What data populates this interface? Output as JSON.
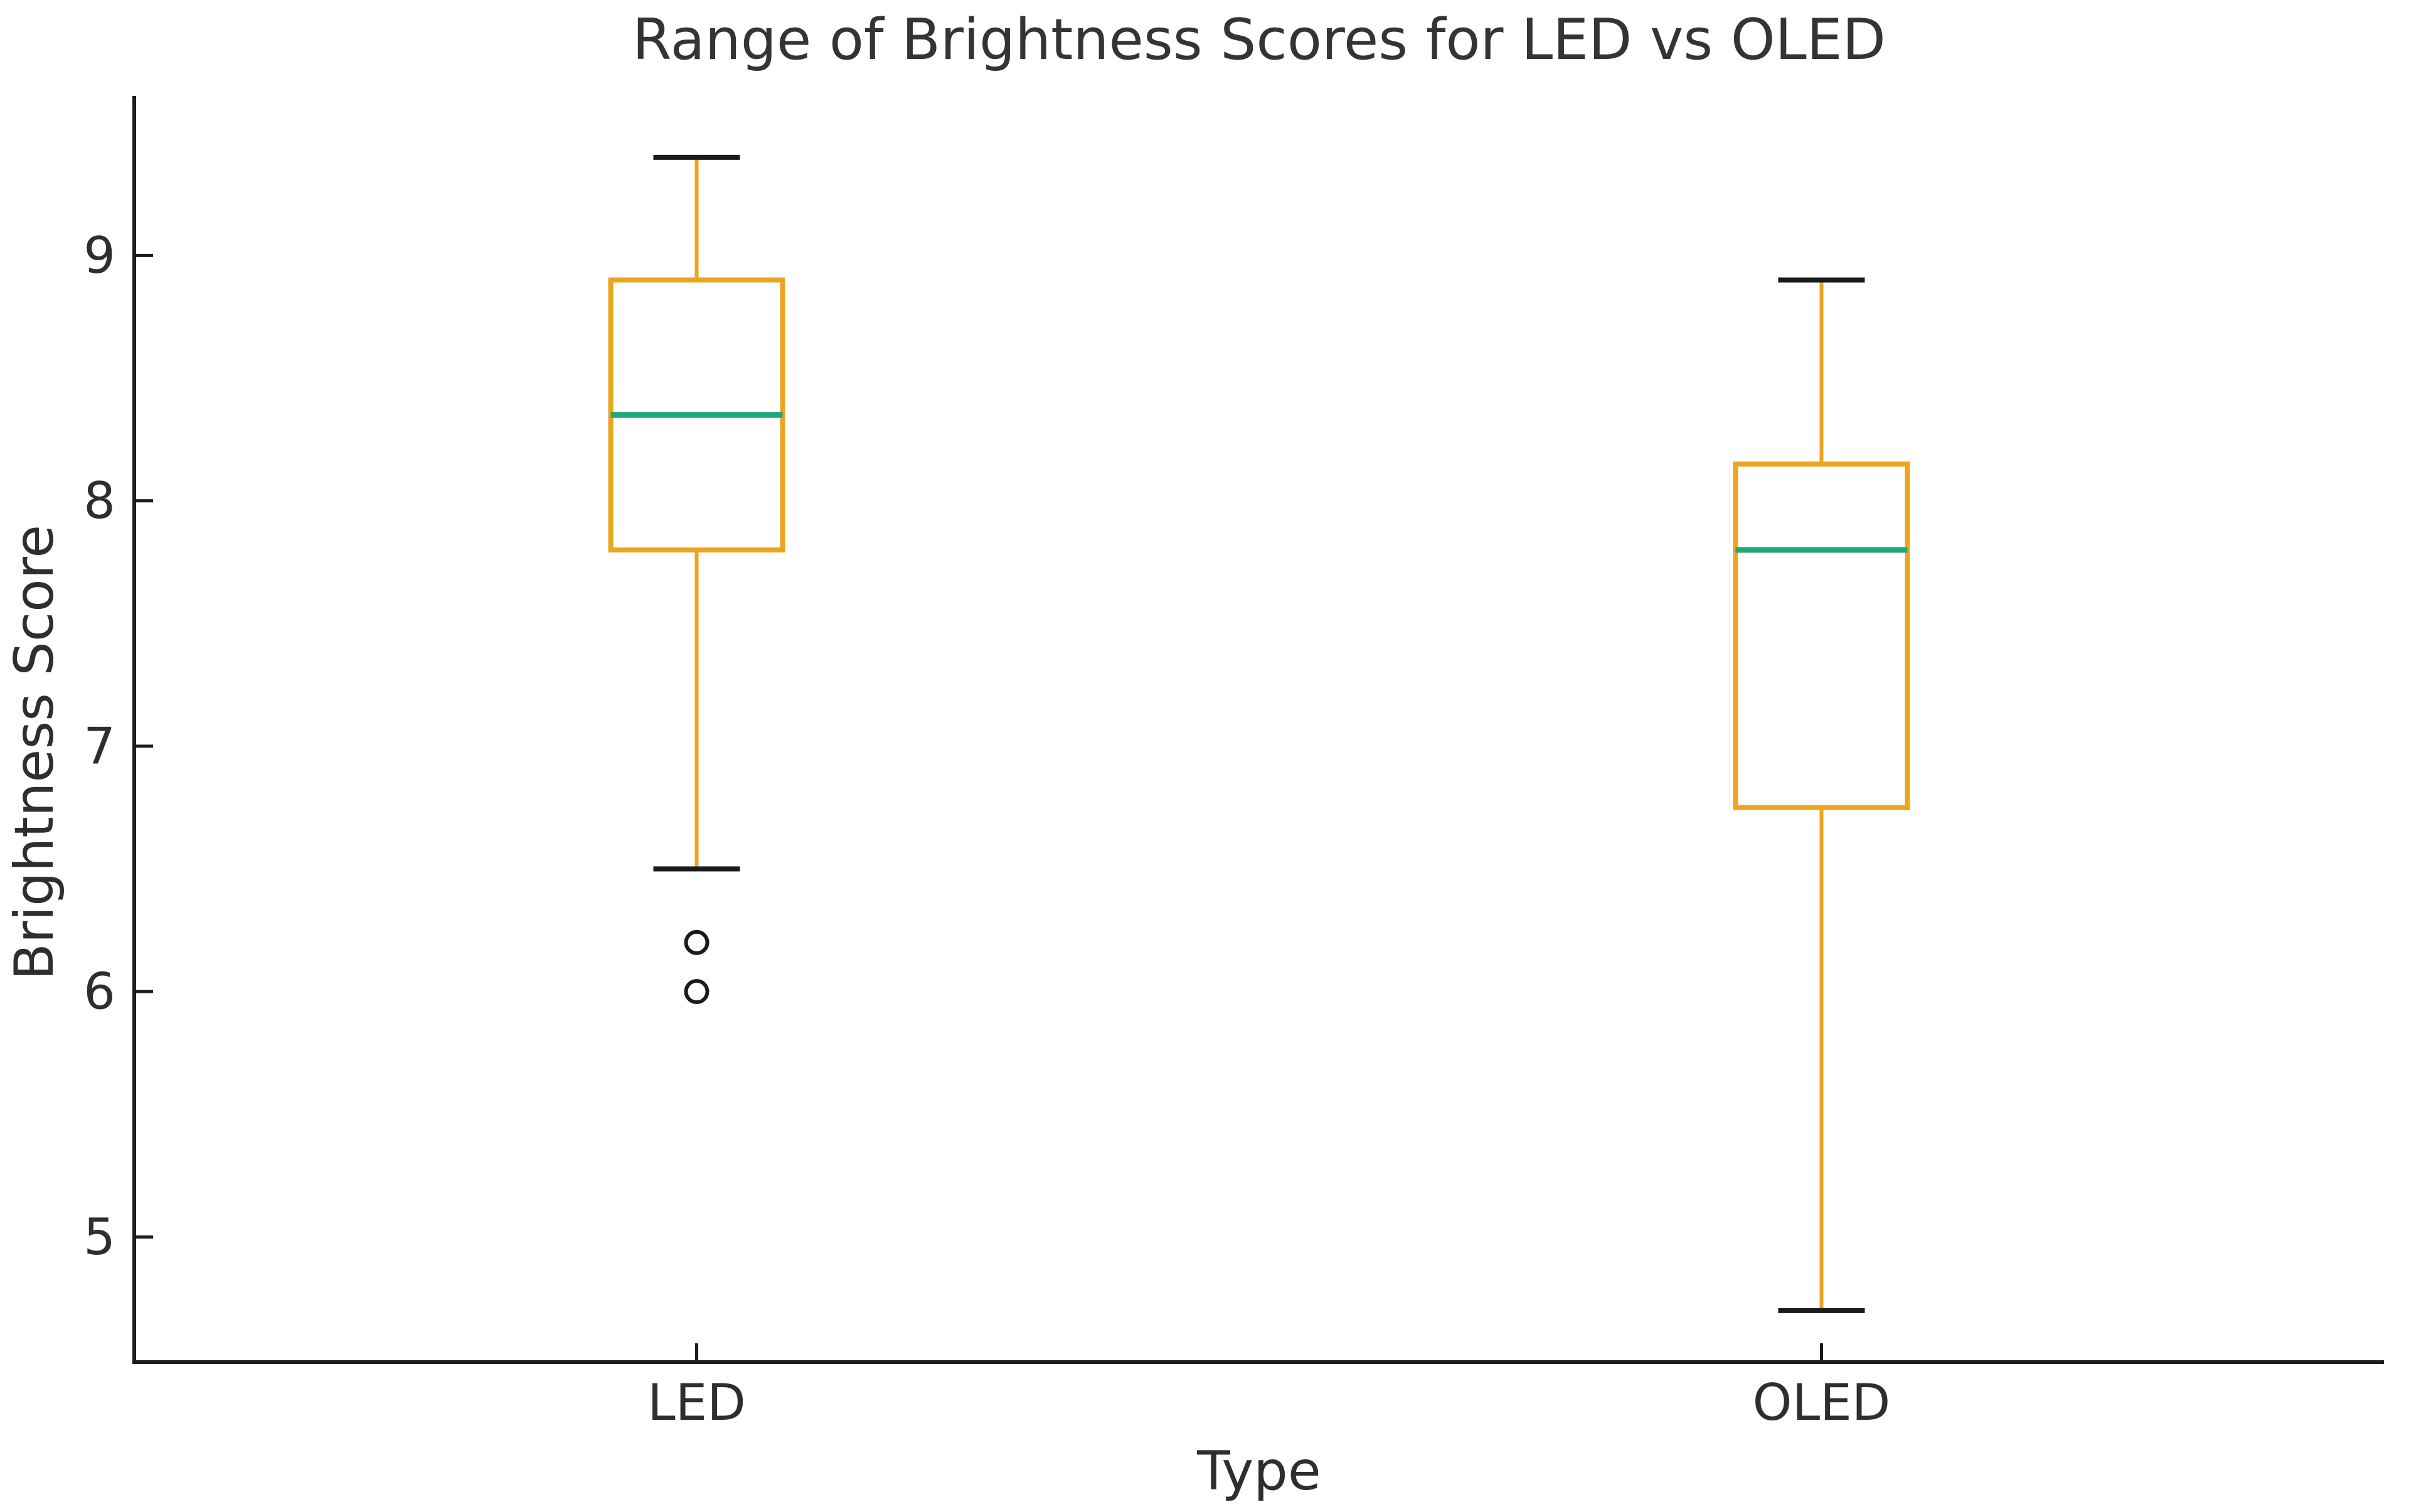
{
  "figure": {
    "title": "Range of Brightness Scores for LED vs OLED",
    "xlabel": "Type",
    "ylabel": "Brightness Score"
  },
  "chart_data": {
    "type": "boxplot",
    "title": "Range of Brightness Scores for LED vs OLED",
    "xlabel": "Type",
    "ylabel": "Brightness Score",
    "categories": [
      "LED",
      "OLED"
    ],
    "yticks": [
      5,
      6,
      7,
      8,
      9
    ],
    "ylim": [
      4.49,
      9.65
    ],
    "grid": false,
    "legend": "none",
    "series": [
      {
        "name": "LED",
        "whisker_low": 6.5,
        "q1": 7.8,
        "median": 8.35,
        "q3": 8.9,
        "whisker_high": 9.4,
        "outliers": [
          6.2,
          6.0
        ]
      },
      {
        "name": "OLED",
        "whisker_low": 4.7,
        "q1": 6.75,
        "median": 7.8,
        "q3": 8.15,
        "whisker_high": 8.9,
        "outliers": []
      }
    ],
    "colors": {
      "box": "#EBA51F",
      "whisker": "#EBA51F",
      "median": "#20A77C",
      "cap": "#1a1a1a",
      "outlier": "#1a1a1a",
      "axis": "#1c1c1c",
      "text": "#2e2e2e",
      "background": "#ffffff"
    }
  }
}
